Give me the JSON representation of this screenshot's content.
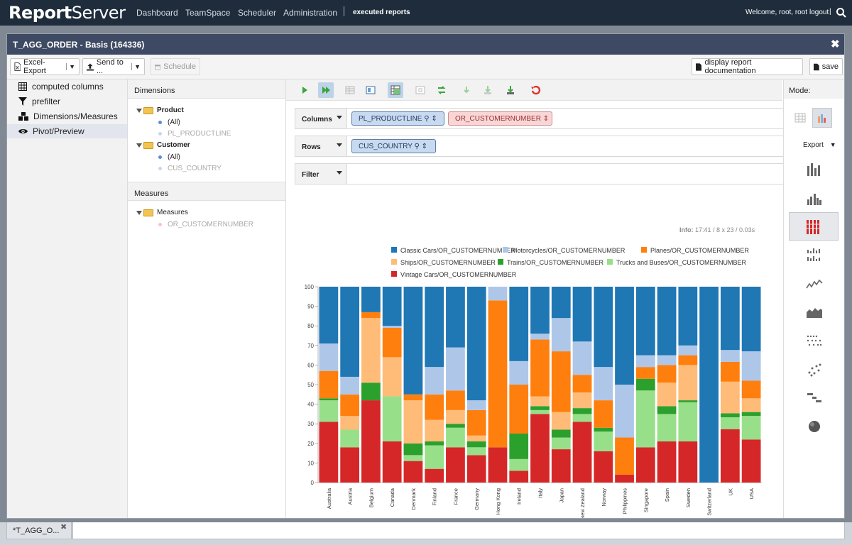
{
  "app": {
    "logo_bold": "Report",
    "logo_light": "Server"
  },
  "nav": {
    "items": [
      "Dashboard",
      "TeamSpace",
      "Scheduler",
      "Administration"
    ],
    "executed": "executed reports",
    "welcome": "Welcome, root, root",
    "logout": "logout",
    "sep": "|"
  },
  "window": {
    "title": "T_AGG_ORDER - Basis (164336)",
    "close": "✖"
  },
  "toolbar": {
    "excel": "Excel-Export",
    "send": "Send to ...",
    "schedule": "Schedule",
    "documentation": "display report documentation",
    "save": "save"
  },
  "sidebar": {
    "items": [
      "computed columns",
      "prefilter",
      "Dimensions/Measures",
      "Pivot/Preview"
    ],
    "active": 3
  },
  "dimensions": {
    "title": "Dimensions",
    "product": "Product",
    "product_all": "(All)",
    "product_level": "PL_PRODUCTLINE",
    "customer": "Customer",
    "customer_all": "(All)",
    "customer_level": "CUS_COUNTRY"
  },
  "measures": {
    "title": "Measures",
    "folder": "Measures",
    "item": "OR_CUSTOMERNUMBER"
  },
  "pivot": {
    "columns_label": "Columns",
    "rows_label": "Rows",
    "filter_label": "Filter",
    "col_pill1": "PL_PRODUCTLINE",
    "col_pill2": "OR_CUSTOMERNUMBER",
    "row_pill": "CUS_COUNTRY",
    "info_label": "Info:",
    "info_value": "17:41  /  8 x 23  /  0.03s"
  },
  "mode": {
    "title": "Mode:",
    "export": "Export",
    "selected_index": 2
  },
  "bottom_tab": {
    "label": "*T_AGG_O...",
    "close": "✖"
  },
  "colors": {
    "accent": "#1e2c3b",
    "header": "#3e4a63"
  },
  "chart_data": {
    "type": "bar",
    "stacked": true,
    "normalized": true,
    "ylim": [
      0,
      100
    ],
    "yticks": [
      0,
      10,
      20,
      30,
      40,
      50,
      60,
      70,
      80,
      90,
      100
    ],
    "legend_position": "top",
    "categories": [
      "Australia",
      "Austria",
      "Belgium",
      "Canada",
      "Denmark",
      "Finland",
      "France",
      "Germany",
      "Hong Kong",
      "Ireland",
      "Italy",
      "Japan",
      "New Zealand",
      "Norway",
      "Philippines",
      "Singapore",
      "Spain",
      "Sweden",
      "Switzerland",
      "UK",
      "USA"
    ],
    "series": [
      {
        "name": "Vintage Cars/OR_CUSTOMERNUMBER",
        "color": "#d62728",
        "values": [
          31,
          18,
          42,
          21,
          11,
          7,
          18,
          14,
          18,
          6,
          35,
          17,
          31,
          16,
          4,
          18,
          21,
          21,
          0,
          27,
          22
        ]
      },
      {
        "name": "Trucks and Buses/OR_CUSTOMERNUMBER",
        "color": "#98df8a",
        "values": [
          11,
          9,
          0,
          23,
          3,
          12,
          10,
          4,
          0,
          6,
          2,
          6,
          4,
          10,
          0,
          29,
          14,
          20,
          0,
          6,
          12
        ]
      },
      {
        "name": "Trains/OR_CUSTOMERNUMBER",
        "color": "#2ca02c",
        "values": [
          1,
          0,
          9,
          0,
          6,
          2,
          2,
          3,
          0,
          13,
          2,
          4,
          3,
          2,
          0,
          6,
          4,
          1,
          0,
          2,
          2
        ]
      },
      {
        "name": "Ships/OR_CUSTOMERNUMBER",
        "color": "#ffbb78",
        "values": [
          0,
          7,
          33,
          20,
          22,
          11,
          7,
          3,
          0,
          0,
          5,
          9,
          8,
          0,
          0,
          0,
          12,
          18,
          0,
          16,
          7
        ]
      },
      {
        "name": "Planes/OR_CUSTOMERNUMBER",
        "color": "#ff7f0e",
        "values": [
          14,
          11,
          3,
          15,
          3,
          13,
          10,
          13,
          75,
          25,
          29,
          31,
          9,
          14,
          19,
          6,
          9,
          5,
          0,
          10,
          9
        ]
      },
      {
        "name": "Motorcycles/OR_CUSTOMERNUMBER",
        "color": "#aec7e8",
        "values": [
          14,
          9,
          0,
          1,
          0,
          14,
          22,
          5,
          7,
          12,
          3,
          17,
          17,
          17,
          27,
          6,
          5,
          5,
          0,
          6,
          15
        ]
      },
      {
        "name": "Classic Cars/OR_CUSTOMERNUMBER",
        "color": "#1f77b4",
        "values": [
          29,
          46,
          13,
          20,
          55,
          41,
          31,
          58,
          0,
          38,
          24,
          16,
          28,
          41,
          50,
          35,
          35,
          30,
          100,
          32,
          33
        ]
      }
    ],
    "legend_order": [
      6,
      5,
      4,
      3,
      2,
      1,
      0
    ]
  }
}
